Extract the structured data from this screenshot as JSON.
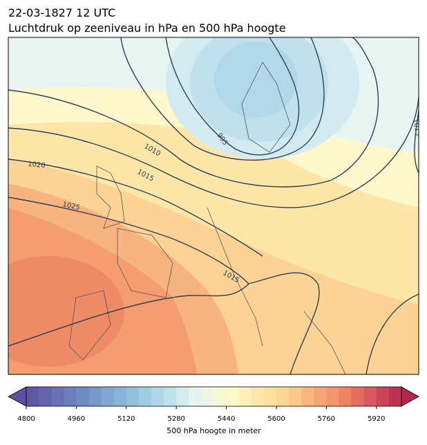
{
  "header": {
    "time": "22-03-1827 12 UTC",
    "title": "Luchtdruk op zeeniveau in hPa en 500 hPa hoogte"
  },
  "contour_labels": [
    "995",
    "1010",
    "1015",
    "1020",
    "1025",
    "1015",
    "1015"
  ],
  "colorbar": {
    "lim": [
      4800,
      6000
    ],
    "ticks": [
      4800,
      4960,
      5120,
      5280,
      5440,
      5600,
      5760,
      5920
    ],
    "label": "500 hPa hoogte in meter"
  }
}
